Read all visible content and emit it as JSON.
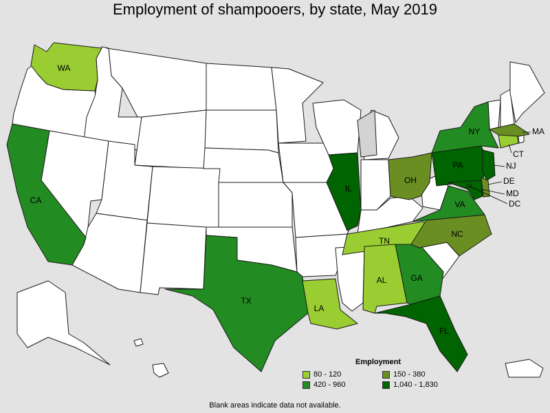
{
  "title": "Employment of shampooers, by state, May 2019",
  "colors": {
    "background": "#e3e3e3",
    "no_data": "#ffffff",
    "unlabeled_gray": "#d3d3d3"
  },
  "legend": {
    "title": "Employment",
    "items": [
      {
        "label": "80 - 120",
        "color": "#9acd32"
      },
      {
        "label": "150 - 380",
        "color": "#6b8e23"
      },
      {
        "label": "420 - 960",
        "color": "#228b22"
      },
      {
        "label": "1,040 - 1,830",
        "color": "#006400"
      }
    ]
  },
  "footnote": "Blank areas indicate data not available.",
  "states": [
    {
      "abbr": "WA",
      "bin": 0
    },
    {
      "abbr": "TN",
      "bin": 0
    },
    {
      "abbr": "AL",
      "bin": 0
    },
    {
      "abbr": "LA",
      "bin": 0
    },
    {
      "abbr": "CT",
      "bin": 0
    },
    {
      "abbr": "OH",
      "bin": 1
    },
    {
      "abbr": "NC",
      "bin": 1
    },
    {
      "abbr": "MA",
      "bin": 1
    },
    {
      "abbr": "DE",
      "bin": 1
    },
    {
      "abbr": "CA",
      "bin": 2
    },
    {
      "abbr": "TX",
      "bin": 2
    },
    {
      "abbr": "NY",
      "bin": 2
    },
    {
      "abbr": "VA",
      "bin": 2
    },
    {
      "abbr": "GA",
      "bin": 2
    },
    {
      "abbr": "IL",
      "bin": 3
    },
    {
      "abbr": "PA",
      "bin": 3
    },
    {
      "abbr": "FL",
      "bin": 3
    },
    {
      "abbr": "NJ",
      "bin": 3
    },
    {
      "abbr": "MD",
      "bin": 3
    },
    {
      "abbr": "DC",
      "bin": 3
    }
  ]
}
